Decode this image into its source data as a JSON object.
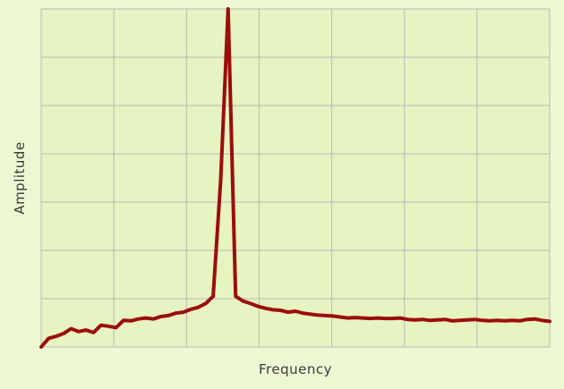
{
  "chart_data": {
    "type": "line",
    "title": "",
    "xlabel": "Frequency",
    "ylabel": "Amplitude",
    "xlim": [
      0,
      68
    ],
    "ylim": [
      0,
      7
    ],
    "grid": true,
    "x_tick_count": 6,
    "y_tick_count": 7,
    "colors": {
      "background": "#eef7d4",
      "panel": "#e6f3c3",
      "grid": "#b9b9b0",
      "line": "#9c0d0d"
    },
    "series": [
      {
        "x": [
          0,
          1,
          2,
          3,
          4,
          5,
          6,
          7,
          8,
          9,
          10,
          11,
          12,
          13,
          14,
          15,
          16,
          17,
          18,
          19,
          20,
          21,
          22,
          23,
          24,
          25,
          26,
          27,
          28,
          29,
          30,
          31,
          32,
          33,
          34,
          35,
          36,
          37,
          38,
          39,
          40,
          41,
          42,
          43,
          44,
          45,
          46,
          47,
          48,
          49,
          50,
          51,
          52,
          53,
          54,
          55,
          56,
          57,
          58,
          59,
          60,
          61,
          62,
          63,
          64,
          65,
          66,
          67,
          68
        ],
        "y": [
          0.0,
          0.18,
          0.22,
          0.28,
          0.38,
          0.32,
          0.35,
          0.3,
          0.45,
          0.43,
          0.4,
          0.55,
          0.54,
          0.58,
          0.6,
          0.58,
          0.63,
          0.65,
          0.7,
          0.72,
          0.78,
          0.82,
          0.9,
          1.05,
          3.45,
          7.0,
          1.05,
          0.95,
          0.9,
          0.84,
          0.8,
          0.77,
          0.76,
          0.72,
          0.74,
          0.7,
          0.68,
          0.66,
          0.65,
          0.64,
          0.62,
          0.6,
          0.61,
          0.6,
          0.59,
          0.6,
          0.59,
          0.59,
          0.6,
          0.57,
          0.56,
          0.57,
          0.55,
          0.56,
          0.57,
          0.54,
          0.55,
          0.56,
          0.57,
          0.55,
          0.54,
          0.55,
          0.54,
          0.55,
          0.54,
          0.57,
          0.58,
          0.55,
          0.53
        ]
      }
    ]
  }
}
